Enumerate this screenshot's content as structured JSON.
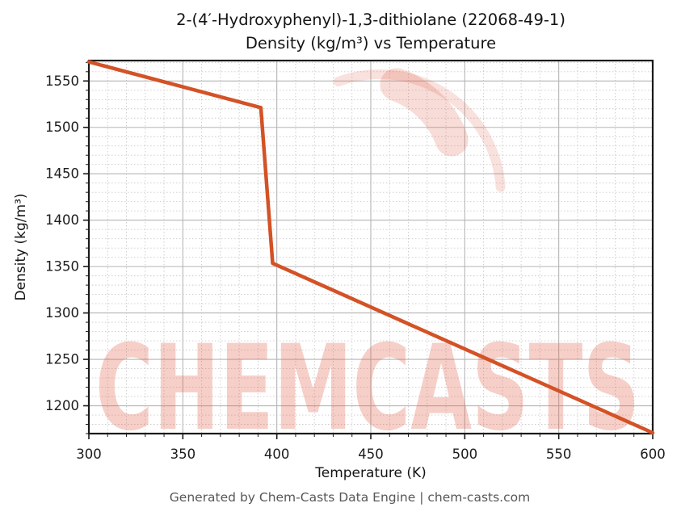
{
  "figure": {
    "title_line1": "2-(4′-Hydroxyphenyl)-1,3-dithiolane (22068-49-1)",
    "title_line2": "Density (kg/m³) vs Temperature",
    "footer": "Generated by Chem-Casts Data Engine | chem-casts.com"
  },
  "watermark": {
    "text": "CHEMCASTS",
    "logo": "brush-ring-c-icon",
    "color": "#e06048",
    "text_opacity": 0.3,
    "ring_opacity": 0.22
  },
  "chart_data": {
    "type": "line",
    "title": "2-(4′-Hydroxyphenyl)-1,3-dithiolane (22068-49-1) Density (kg/m³) vs Temperature",
    "xlabel": "Temperature (K)",
    "ylabel": "Density (kg/m³)",
    "series": [
      {
        "name": "Density",
        "x": [
          300,
          391.5,
          397.8,
          600
        ],
        "y": [
          1570.6,
          1521.3,
          1353.5,
          1170.9
        ]
      }
    ],
    "xlim": [
      300,
      600
    ],
    "ylim": [
      1170,
      1572
    ],
    "xticks": [
      300,
      350,
      400,
      450,
      500,
      550,
      600
    ],
    "yticks": [
      1200,
      1250,
      1300,
      1350,
      1400,
      1450,
      1500,
      1550
    ],
    "minor_step_x": 10,
    "minor_step_y": 10,
    "grid": true,
    "legend": "none",
    "line_color": "#d35226",
    "line_width": 4.5,
    "major_grid_color": "#b5b5b5",
    "minor_grid_color": "#c9c9c9",
    "spine_color": "#1a1a1a",
    "tick_label_color": "#1c1c1c"
  }
}
